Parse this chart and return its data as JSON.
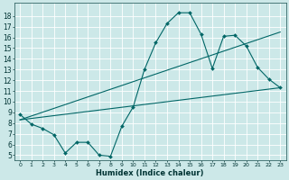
{
  "xlabel": "Humidex (Indice chaleur)",
  "bg_color": "#cce8e8",
  "grid_color": "#ffffff",
  "line_color": "#006666",
  "xlim": [
    -0.5,
    23.5
  ],
  "ylim": [
    4.5,
    19.2
  ],
  "xticks": [
    0,
    1,
    2,
    3,
    4,
    5,
    6,
    7,
    8,
    9,
    10,
    11,
    12,
    13,
    14,
    15,
    16,
    17,
    18,
    19,
    20,
    21,
    22,
    23
  ],
  "yticks": [
    5,
    6,
    7,
    8,
    9,
    10,
    11,
    12,
    13,
    14,
    15,
    16,
    17,
    18
  ],
  "line1_x": [
    0,
    1,
    2,
    3,
    4,
    5,
    6,
    7,
    8,
    9,
    10,
    11,
    12,
    13,
    14,
    15,
    16,
    17,
    18,
    19,
    20,
    21,
    22,
    23
  ],
  "line1_y": [
    8.8,
    7.9,
    7.5,
    6.9,
    5.2,
    6.2,
    6.2,
    5.0,
    4.9,
    7.7,
    9.5,
    13.0,
    15.5,
    17.3,
    18.3,
    18.3,
    16.3,
    13.1,
    16.1,
    16.2,
    15.2,
    13.2,
    12.1,
    11.3
  ],
  "line2_x": [
    0,
    23
  ],
  "line2_y": [
    8.3,
    11.3
  ],
  "line3_x": [
    0,
    23
  ],
  "line3_y": [
    8.3,
    16.5
  ]
}
